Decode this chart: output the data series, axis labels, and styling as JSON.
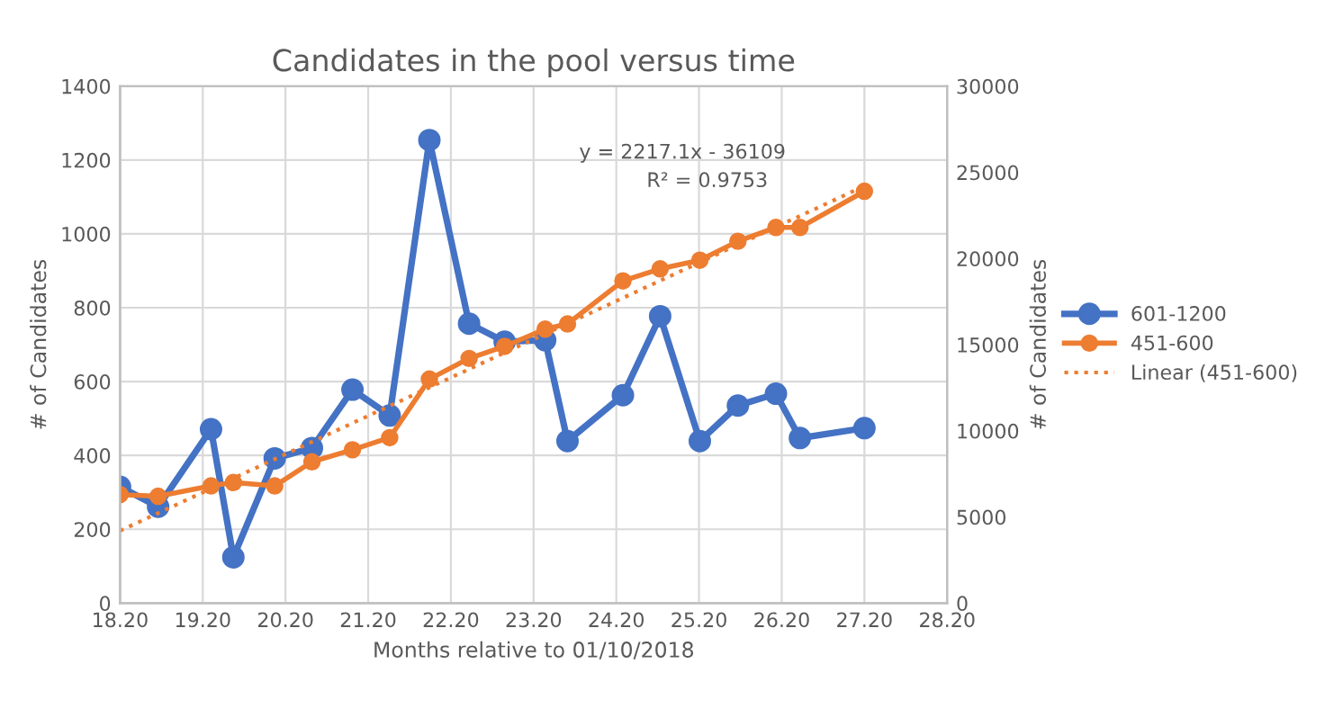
{
  "chart_data": {
    "type": "line",
    "title": "Candidates in the pool versus time",
    "xlabel": "Months relative to 01/10/2018",
    "ylabel": "# of Candidates",
    "y2label": "# of Candidates",
    "annotations": [
      "y = 2217.1x - 36109",
      "R² = 0.9753"
    ],
    "xlim": [
      18.2,
      28.2
    ],
    "xticks": [
      {
        "value": 18.2,
        "label": "18.20"
      },
      {
        "value": 19.2,
        "label": "19.20"
      },
      {
        "value": 20.2,
        "label": "20.20"
      },
      {
        "value": 21.2,
        "label": "21.20"
      },
      {
        "value": 22.2,
        "label": "22.20"
      },
      {
        "value": 23.2,
        "label": "23.20"
      },
      {
        "value": 24.2,
        "label": "24.20"
      },
      {
        "value": 25.2,
        "label": "25.20"
      },
      {
        "value": 26.2,
        "label": "26.20"
      },
      {
        "value": 27.2,
        "label": "27.20"
      },
      {
        "value": 28.2,
        "label": "28.20"
      }
    ],
    "ylim": [
      0,
      1400
    ],
    "yticks": [
      0,
      200,
      400,
      600,
      800,
      1000,
      1200,
      1400
    ],
    "y2lim": [
      0,
      30000
    ],
    "y2ticks": [
      0,
      5000,
      10000,
      15000,
      20000,
      25000,
      30000
    ],
    "grid": true,
    "legend": "right",
    "marker": "circle",
    "series": [
      {
        "name": "601-1200",
        "color": "#4472c4",
        "x": [
          18.2,
          18.66,
          19.3,
          19.57,
          20.07,
          20.52,
          21.01,
          21.46,
          21.94,
          22.42,
          22.85,
          23.34,
          23.61,
          24.28,
          24.73,
          25.21,
          25.67,
          26.13,
          26.42,
          27.2
        ],
        "values": [
          315,
          261,
          471,
          124,
          392,
          420,
          578,
          508,
          1254,
          757,
          708,
          712,
          439,
          563,
          777,
          439,
          535,
          567,
          447,
          474
        ]
      },
      {
        "name": "451-600",
        "color": "#ed7d31",
        "axis": "y2",
        "x": [
          18.2,
          18.66,
          19.3,
          19.57,
          20.07,
          20.52,
          21.01,
          21.46,
          21.94,
          22.42,
          22.85,
          23.34,
          23.61,
          24.28,
          24.73,
          25.21,
          25.67,
          26.13,
          26.42,
          27.2
        ],
        "values": [
          6300,
          6200,
          6800,
          7000,
          6800,
          8200,
          8900,
          9600,
          13000,
          14200,
          14900,
          15900,
          16200,
          18700,
          19400,
          19900,
          21000,
          21800,
          21800,
          23900
        ]
      },
      {
        "name": "Linear (451-600)",
        "color": "#ed7d31",
        "axis": "y2",
        "line_style": "dotted",
        "marker": "none",
        "x": [
          18.2,
          27.2
        ],
        "values": [
          4200,
          24200
        ]
      }
    ]
  }
}
